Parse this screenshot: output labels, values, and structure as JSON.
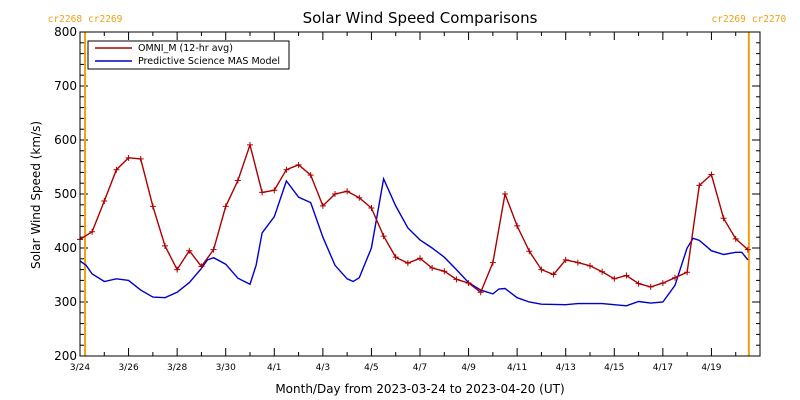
{
  "chart_data": {
    "type": "line",
    "title": "Solar Wind Speed Comparisons",
    "xlabel": "Month/Day from 2023-03-24 to 2023-04-20 (UT)",
    "ylabel": "Solar Wind Speed (km/s)",
    "ylim": [
      200,
      800
    ],
    "yticks": [
      200,
      300,
      400,
      500,
      600,
      700,
      800
    ],
    "xlim": [
      "2023-03-24",
      "2023-04-21"
    ],
    "xticks": [
      {
        "date": "2023-03-24",
        "label": "3/24"
      },
      {
        "date": "2023-03-26",
        "label": "3/26"
      },
      {
        "date": "2023-03-28",
        "label": "3/28"
      },
      {
        "date": "2023-03-30",
        "label": "3/30"
      },
      {
        "date": "2023-04-01",
        "label": "4/1"
      },
      {
        "date": "2023-04-03",
        "label": "4/3"
      },
      {
        "date": "2023-04-05",
        "label": "4/5"
      },
      {
        "date": "2023-04-07",
        "label": "4/7"
      },
      {
        "date": "2023-04-09",
        "label": "4/9"
      },
      {
        "date": "2023-04-11",
        "label": "4/11"
      },
      {
        "date": "2023-04-13",
        "label": "4/13"
      },
      {
        "date": "2023-04-15",
        "label": "4/15"
      },
      {
        "date": "2023-04-17",
        "label": "4/17"
      },
      {
        "date": "2023-04-19",
        "label": "4/19"
      }
    ],
    "carrington_markers": [
      {
        "date": "2023-03-24 05:00",
        "left_label": "cr2268",
        "right_label": "cr2269"
      },
      {
        "date": "2023-04-20 13:00",
        "left_label": "cr2269",
        "right_label": "cr2270"
      }
    ],
    "legend": "top-left",
    "series": [
      {
        "name": "OMNI_M (12-hr avg)",
        "color": "#aa0000",
        "markers": "plus",
        "points": [
          [
            "2023-03-24 00:00",
            416
          ],
          [
            "2023-03-24 12:00",
            430
          ],
          [
            "2023-03-25 00:00",
            487
          ],
          [
            "2023-03-25 12:00",
            545
          ],
          [
            "2023-03-26 00:00",
            567
          ],
          [
            "2023-03-26 12:00",
            565
          ],
          [
            "2023-03-27 00:00",
            477
          ],
          [
            "2023-03-27 12:00",
            404
          ],
          [
            "2023-03-28 00:00",
            360
          ],
          [
            "2023-03-28 12:00",
            395
          ],
          [
            "2023-03-29 00:00",
            366
          ],
          [
            "2023-03-29 12:00",
            397
          ],
          [
            "2023-03-30 00:00",
            477
          ],
          [
            "2023-03-30 12:00",
            525
          ],
          [
            "2023-03-31 00:00",
            591
          ],
          [
            "2023-03-31 12:00",
            503
          ],
          [
            "2023-04-01 00:00",
            507
          ],
          [
            "2023-04-01 12:00",
            545
          ],
          [
            "2023-04-02 00:00",
            554
          ],
          [
            "2023-04-02 12:00",
            535
          ],
          [
            "2023-04-03 00:00",
            478
          ],
          [
            "2023-04-03 12:00",
            500
          ],
          [
            "2023-04-04 00:00",
            505
          ],
          [
            "2023-04-04 12:00",
            493
          ],
          [
            "2023-04-05 00:00",
            474
          ],
          [
            "2023-04-05 12:00",
            422
          ],
          [
            "2023-04-06 00:00",
            383
          ],
          [
            "2023-04-06 12:00",
            372
          ],
          [
            "2023-04-07 00:00",
            381
          ],
          [
            "2023-04-07 12:00",
            363
          ],
          [
            "2023-04-08 00:00",
            357
          ],
          [
            "2023-04-08 12:00",
            342
          ],
          [
            "2023-04-09 00:00",
            335
          ],
          [
            "2023-04-09 12:00",
            318
          ],
          [
            "2023-04-10 00:00",
            373
          ],
          [
            "2023-04-10 12:00",
            500
          ],
          [
            "2023-04-11 00:00",
            441
          ],
          [
            "2023-04-11 12:00",
            394
          ],
          [
            "2023-04-12 00:00",
            360
          ],
          [
            "2023-04-12 12:00",
            351
          ],
          [
            "2023-04-13 00:00",
            378
          ],
          [
            "2023-04-13 12:00",
            373
          ],
          [
            "2023-04-14 00:00",
            367
          ],
          [
            "2023-04-14 12:00",
            356
          ],
          [
            "2023-04-15 00:00",
            343
          ],
          [
            "2023-04-15 12:00",
            349
          ],
          [
            "2023-04-16 00:00",
            334
          ],
          [
            "2023-04-16 12:00",
            328
          ],
          [
            "2023-04-17 00:00",
            335
          ],
          [
            "2023-04-17 12:00",
            345
          ],
          [
            "2023-04-18 00:00",
            355
          ],
          [
            "2023-04-18 12:00",
            516
          ],
          [
            "2023-04-19 00:00",
            536
          ],
          [
            "2023-04-19 12:00",
            455
          ],
          [
            "2023-04-20 00:00",
            417
          ],
          [
            "2023-04-20 12:00",
            397
          ]
        ]
      },
      {
        "name": "Predictive Science MAS Model",
        "color": "#0000cc",
        "markers": "none",
        "points": [
          [
            "2023-03-24 00:00",
            376
          ],
          [
            "2023-03-24 06:00",
            368
          ],
          [
            "2023-03-24 12:00",
            352
          ],
          [
            "2023-03-25 00:00",
            338
          ],
          [
            "2023-03-25 12:00",
            343
          ],
          [
            "2023-03-26 00:00",
            340
          ],
          [
            "2023-03-26 12:00",
            322
          ],
          [
            "2023-03-27 00:00",
            309
          ],
          [
            "2023-03-27 12:00",
            308
          ],
          [
            "2023-03-28 00:00",
            318
          ],
          [
            "2023-03-28 12:00",
            336
          ],
          [
            "2023-03-29 00:00",
            362
          ],
          [
            "2023-03-29 06:00",
            378
          ],
          [
            "2023-03-29 12:00",
            382
          ],
          [
            "2023-03-30 00:00",
            370
          ],
          [
            "2023-03-30 12:00",
            344
          ],
          [
            "2023-03-31 00:00",
            333
          ],
          [
            "2023-03-31 06:00",
            368
          ],
          [
            "2023-03-31 12:00",
            428
          ],
          [
            "2023-04-01 00:00",
            458
          ],
          [
            "2023-04-01 12:00",
            524
          ],
          [
            "2023-04-02 00:00",
            494
          ],
          [
            "2023-04-02 12:00",
            484
          ],
          [
            "2023-04-03 00:00",
            420
          ],
          [
            "2023-04-03 12:00",
            368
          ],
          [
            "2023-04-04 00:00",
            343
          ],
          [
            "2023-04-04 06:00",
            338
          ],
          [
            "2023-04-04 12:00",
            345
          ],
          [
            "2023-04-05 00:00",
            400
          ],
          [
            "2023-04-05 12:00",
            528
          ],
          [
            "2023-04-06 00:00",
            478
          ],
          [
            "2023-04-06 12:00",
            437
          ],
          [
            "2023-04-07 00:00",
            415
          ],
          [
            "2023-04-07 12:00",
            400
          ],
          [
            "2023-04-08 00:00",
            383
          ],
          [
            "2023-04-08 12:00",
            360
          ],
          [
            "2023-04-09 00:00",
            336
          ],
          [
            "2023-04-09 12:00",
            322
          ],
          [
            "2023-04-10 00:00",
            315
          ],
          [
            "2023-04-10 06:00",
            324
          ],
          [
            "2023-04-10 12:00",
            325
          ],
          [
            "2023-04-11 00:00",
            308
          ],
          [
            "2023-04-11 12:00",
            300
          ],
          [
            "2023-04-12 00:00",
            296
          ],
          [
            "2023-04-13 00:00",
            295
          ],
          [
            "2023-04-13 12:00",
            297
          ],
          [
            "2023-04-14 12:00",
            297
          ],
          [
            "2023-04-15 00:00",
            295
          ],
          [
            "2023-04-15 12:00",
            293
          ],
          [
            "2023-04-16 00:00",
            301
          ],
          [
            "2023-04-16 12:00",
            298
          ],
          [
            "2023-04-17 00:00",
            300
          ],
          [
            "2023-04-17 12:00",
            331
          ],
          [
            "2023-04-18 00:00",
            400
          ],
          [
            "2023-04-18 06:00",
            418
          ],
          [
            "2023-04-18 12:00",
            414
          ],
          [
            "2023-04-19 00:00",
            395
          ],
          [
            "2023-04-19 12:00",
            388
          ],
          [
            "2023-04-20 00:00",
            392
          ],
          [
            "2023-04-20 06:00",
            392
          ],
          [
            "2023-04-20 12:00",
            378
          ]
        ]
      }
    ]
  }
}
